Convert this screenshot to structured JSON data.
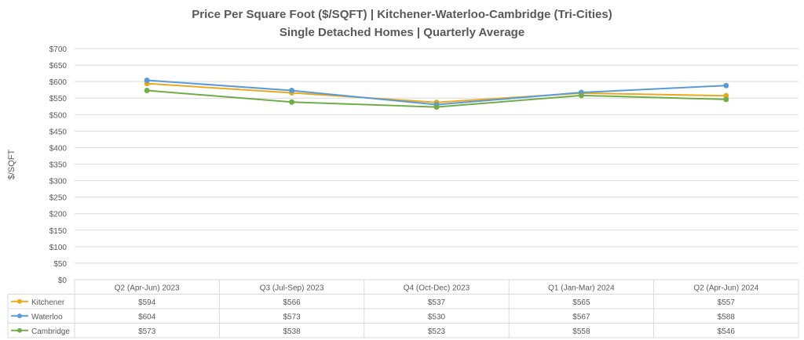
{
  "chart_data": {
    "type": "line",
    "title": "Price Per Square Foot ($/SQFT) | Kitchener-Waterloo-Cambridge (Tri-Cities)",
    "subtitle": "Single Detached Homes | Quarterly Average",
    "xlabel": "",
    "ylabel": "$/SQFT",
    "ylim": [
      0,
      700
    ],
    "yticks": [
      "$0",
      "$50",
      "$100",
      "$150",
      "$200",
      "$250",
      "$300",
      "$350",
      "$400",
      "$450",
      "$500",
      "$550",
      "$600",
      "$650",
      "$700"
    ],
    "grid": true,
    "legend": "data-table",
    "categories": [
      "Q2 (Apr-Jun) 2023",
      "Q3 (Jul-Sep) 2023",
      "Q4 (Oct-Dec) 2023",
      "Q1 (Jan-Mar) 2024",
      "Q2 (Apr-Jun) 2024"
    ],
    "series": [
      {
        "name": "Kitchener",
        "color": "#E8A820",
        "values": [
          594,
          566,
          537,
          565,
          557
        ],
        "labels": [
          "$594",
          "$566",
          "$537",
          "$565",
          "$557"
        ]
      },
      {
        "name": "Waterloo",
        "color": "#5B9BD5",
        "values": [
          604,
          573,
          530,
          567,
          588
        ],
        "labels": [
          "$604",
          "$573",
          "$530",
          "$567",
          "$588"
        ]
      },
      {
        "name": "Cambridge",
        "color": "#70AD47",
        "values": [
          573,
          538,
          523,
          558,
          546
        ],
        "labels": [
          "$573",
          "$538",
          "$523",
          "$558",
          "$546"
        ]
      }
    ]
  }
}
